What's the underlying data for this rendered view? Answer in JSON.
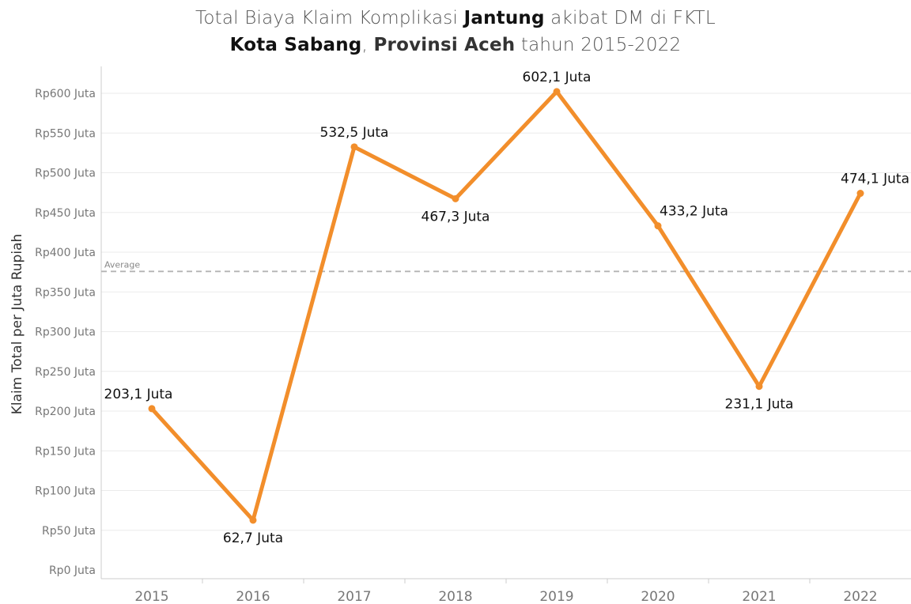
{
  "chart_data": {
    "type": "line",
    "title": {
      "line1_pre": "Total Biaya Klaim Komplikasi ",
      "line1_bold": "Jantung",
      "line1_post": " akibat DM di FKTL",
      "line2_bold1": "Kota Sabang",
      "line2_sep": ", ",
      "line2_bold2": "Provinsi Aceh",
      "line2_post": " tahun 2015-2022"
    },
    "ylabel": "Klaim Total per Juta Rupiah",
    "xlabel": "",
    "categories": [
      "2015",
      "2016",
      "2017",
      "2018",
      "2019",
      "2020",
      "2021",
      "2022"
    ],
    "values": [
      203.1,
      62.7,
      532.5,
      467.3,
      602.1,
      433.2,
      231.1,
      474.1
    ],
    "data_labels": [
      "203,1 Juta",
      "62,7 Juta",
      "532,5 Juta",
      "467,3 Juta",
      "602,1 Juta",
      "433,2 Juta",
      "231,1 Juta",
      "474,1 Juta"
    ],
    "label_position": [
      "above",
      "below",
      "above",
      "below",
      "above",
      "above",
      "below",
      "above"
    ],
    "yticks": [
      0,
      50,
      100,
      150,
      200,
      250,
      300,
      350,
      400,
      450,
      500,
      550,
      600
    ],
    "ytick_labels": [
      "Rp0 Juta",
      "Rp50 Juta",
      "Rp100 Juta",
      "Rp150 Juta",
      "Rp200 Juta",
      "Rp250 Juta",
      "Rp300 Juta",
      "Rp350 Juta",
      "Rp400 Juta",
      "Rp450 Juta",
      "Rp500 Juta",
      "Rp550 Juta",
      "Rp600 Juta"
    ],
    "ylim": [
      0,
      635
    ],
    "reference_line": {
      "label": "Average",
      "value": 375.8
    },
    "grid": true,
    "legend": "none",
    "colors": {
      "line": "#F28E2B",
      "grid": "#EBEBEB",
      "axis": "#CCCCCC",
      "reference": "#B3B3B3",
      "tick_text": "#777777",
      "label_text": "#111111",
      "title_text": "#555555"
    }
  }
}
